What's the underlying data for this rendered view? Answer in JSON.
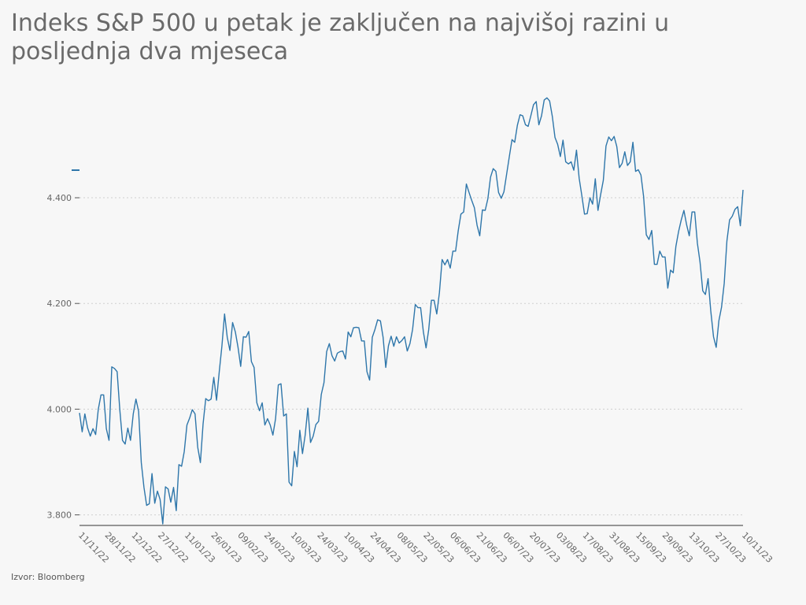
{
  "title": "Indeks S&P 500 u petak je zaključen na najvišoj razini u posljednja dva mjeseca",
  "source": "Izvor: Bloomberg",
  "colors": {
    "line": "#2e76aa",
    "background": "#f7f7f7",
    "grid": "#cfcfcf"
  },
  "chart_data": {
    "type": "line",
    "title": "Indeks S&P 500 u petak je zaključen na najvišoj razini u posljednja dva mjeseca",
    "xlabel": "",
    "ylabel": "",
    "ylim": [
      3780,
      4640
    ],
    "yticks": [
      3800,
      4000,
      4200,
      4400
    ],
    "ytick_labels": [
      "3.800",
      "4.000",
      "4.200",
      "4.400"
    ],
    "grid": true,
    "xtick_labels": [
      "11/11/22",
      "28/11/22",
      "12/12/22",
      "27/12/22",
      "11/01/23",
      "26/01/23",
      "09/02/23",
      "24/02/23",
      "10/03/23",
      "24/03/23",
      "10/04/23",
      "24/04/23",
      "08/05/23",
      "22/05/23",
      "06/06/23",
      "21/06/23",
      "06/07/23",
      "20/07/23",
      "03/08/23",
      "17/08/23",
      "31/08/23",
      "15/09/23",
      "29/09/23",
      "13/10/23",
      "27/10/23",
      "10/11/23"
    ],
    "x_range": [
      "11/11/22",
      "10/11/23"
    ],
    "series": [
      {
        "values": [
          3993,
          3957,
          3991,
          3965,
          3949,
          3963,
          3952,
          4000,
          4027,
          4027,
          3963,
          3941,
          4080,
          4077,
          4071,
          3999,
          3941,
          3934,
          3964,
          3941,
          3991,
          4019,
          3996,
          3899,
          3852,
          3818,
          3821,
          3878,
          3822,
          3845,
          3829,
          3783,
          3853,
          3849,
          3824,
          3852,
          3808,
          3895,
          3892,
          3920,
          3970,
          3983,
          3999,
          3991,
          3928,
          3899,
          3972,
          4020,
          4016,
          4019,
          4060,
          4017,
          4070,
          4119,
          4180,
          4136,
          4111,
          4164,
          4146,
          4117,
          4081,
          4137,
          4136,
          4147,
          4090,
          4079,
          4012,
          3997,
          4012,
          3970,
          3982,
          3970,
          3951,
          3982,
          4046,
          4048,
          3987,
          3991,
          3862,
          3855,
          3920,
          3891,
          3960,
          3916,
          3951,
          4002,
          3937,
          3949,
          3971,
          3977,
          4028,
          4050,
          4109,
          4124,
          4101,
          4091,
          4106,
          4109,
          4110,
          4095,
          4146,
          4137,
          4154,
          4155,
          4154,
          4129,
          4129,
          4071,
          4055,
          4136,
          4151,
          4169,
          4167,
          4136,
          4079,
          4120,
          4138,
          4119,
          4137,
          4125,
          4130,
          4137,
          4110,
          4124,
          4151,
          4198,
          4192,
          4192,
          4146,
          4116,
          4151,
          4206,
          4206,
          4180,
          4221,
          4283,
          4273,
          4283,
          4267,
          4299,
          4299,
          4338,
          4369,
          4373,
          4426,
          4410,
          4395,
          4381,
          4348,
          4328,
          4377,
          4376,
          4398,
          4439,
          4455,
          4450,
          4410,
          4399,
          4411,
          4445,
          4478,
          4510,
          4505,
          4537,
          4557,
          4555,
          4538,
          4535,
          4555,
          4576,
          4582,
          4538,
          4555,
          4585,
          4589,
          4583,
          4554,
          4514,
          4501,
          4478,
          4509,
          4468,
          4464,
          4468,
          4452,
          4490,
          4437,
          4404,
          4369,
          4370,
          4400,
          4388,
          4436,
          4376,
          4406,
          4433,
          4498,
          4515,
          4508,
          4516,
          4497,
          4457,
          4465,
          4487,
          4461,
          4468,
          4505,
          4450,
          4453,
          4443,
          4402,
          4330,
          4321,
          4338,
          4274,
          4274,
          4299,
          4288,
          4288,
          4229,
          4263,
          4258,
          4308,
          4336,
          4358,
          4376,
          4349,
          4328,
          4373,
          4373,
          4314,
          4278,
          4224,
          4217,
          4247,
          4186,
          4137,
          4117,
          4167,
          4193,
          4238,
          4318,
          4358,
          4365,
          4378,
          4383,
          4347,
          4415
        ]
      }
    ]
  }
}
